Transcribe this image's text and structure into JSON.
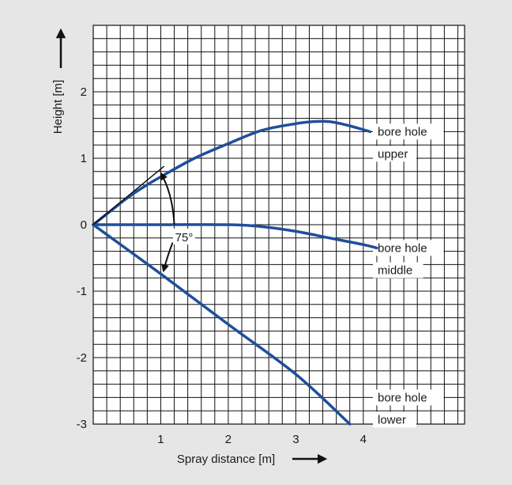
{
  "chart_data": {
    "type": "line",
    "title": "",
    "xlabel": "Spray distance [m]",
    "ylabel": "Height [m]",
    "xlim": [
      0,
      5.5
    ],
    "ylim": [
      -3,
      3
    ],
    "x_ticks": [
      "1",
      "2",
      "3",
      "4"
    ],
    "x_tick_values": [
      1,
      2,
      3,
      4
    ],
    "y_ticks": [
      "2",
      "1",
      "0",
      "-1",
      "-2",
      "-3"
    ],
    "y_tick_values": [
      2,
      1,
      0,
      -1,
      -2,
      -3
    ],
    "grid": true,
    "grid_step": 0.2,
    "line_color": "#1f4e9c",
    "series": [
      {
        "name": "bore hole upper",
        "label_lines": [
          "bore hole",
          "upper"
        ],
        "points": [
          [
            0,
            0
          ],
          [
            0.25,
            0.2
          ],
          [
            0.5,
            0.4
          ],
          [
            0.75,
            0.57
          ],
          [
            1,
            0.72
          ],
          [
            1.5,
            1.0
          ],
          [
            2,
            1.22
          ],
          [
            2.5,
            1.42
          ],
          [
            3,
            1.52
          ],
          [
            3.25,
            1.55
          ],
          [
            3.5,
            1.55
          ],
          [
            3.75,
            1.5
          ],
          [
            4,
            1.43
          ],
          [
            4.1,
            1.4
          ]
        ]
      },
      {
        "name": "bore hole middle",
        "label_lines": [
          "bore hole",
          "middle"
        ],
        "points": [
          [
            0,
            0
          ],
          [
            1,
            0
          ],
          [
            2,
            0
          ],
          [
            2.5,
            -0.03
          ],
          [
            3,
            -0.1
          ],
          [
            3.5,
            -0.2
          ],
          [
            4,
            -0.3
          ],
          [
            4.2,
            -0.35
          ]
        ]
      },
      {
        "name": "bore hole lower",
        "label_lines": [
          "bore hole",
          "lower"
        ],
        "points": [
          [
            0,
            0
          ],
          [
            1,
            -0.74
          ],
          [
            2,
            -1.5
          ],
          [
            3,
            -2.25
          ],
          [
            3.8,
            -3.0
          ]
        ]
      }
    ],
    "annotations": {
      "angle_label": "75°",
      "reference_line": [
        [
          0,
          0
        ],
        [
          1.05,
          0.88
        ]
      ]
    }
  }
}
